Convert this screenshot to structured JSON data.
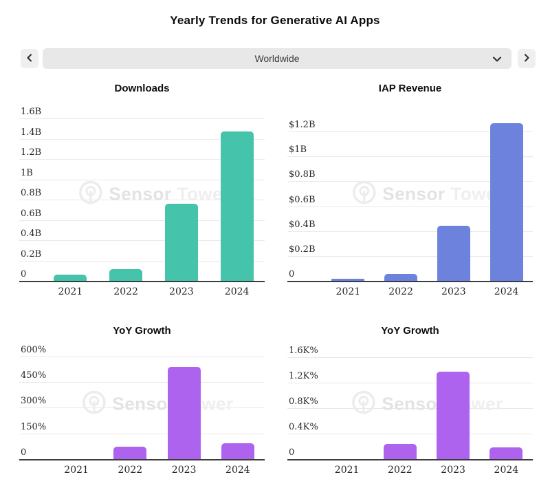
{
  "page": {
    "title": "Yearly Trends for Generative AI Apps"
  },
  "controls": {
    "selected_region": "Worldwide",
    "prev_icon": "chevron-left",
    "next_icon": "chevron-right",
    "dropdown_icon": "chevron-down"
  },
  "watermark": {
    "brand_primary": "Sensor",
    "brand_secondary": "Tower"
  },
  "colors": {
    "downloads_bar": "#45c4ab",
    "revenue_bar": "#6c82dd",
    "growth_bar": "#ae63ee",
    "gridline": "#e9e9e9",
    "axis": "#3c3c3c",
    "control_bg": "#e8e8e8",
    "button_bg": "#efefef"
  },
  "chart_data": [
    {
      "id": "downloads",
      "type": "bar",
      "title": "Downloads",
      "unit": "billions of downloads",
      "categories": [
        "2021",
        "2022",
        "2023",
        "2024"
      ],
      "values": [
        0.07,
        0.12,
        0.77,
        1.48
      ],
      "color": "#45c4ab",
      "ticks": [
        {
          "v": 0,
          "label": "0"
        },
        {
          "v": 0.2,
          "label": "0.2B"
        },
        {
          "v": 0.4,
          "label": "0.4B"
        },
        {
          "v": 0.6,
          "label": "0.6B"
        },
        {
          "v": 0.8,
          "label": "0.8B"
        },
        {
          "v": 1,
          "label": "1B"
        },
        {
          "v": 1.2,
          "label": "1.2B"
        },
        {
          "v": 1.4,
          "label": "1.4B"
        },
        {
          "v": 1.6,
          "label": "1.6B"
        }
      ],
      "ylim": [
        0,
        1.73
      ],
      "grid": true,
      "legend": false
    },
    {
      "id": "iap-revenue",
      "type": "bar",
      "title": "IAP Revenue",
      "unit": "USD billions",
      "categories": [
        "2021",
        "2022",
        "2023",
        "2024"
      ],
      "values": [
        0.02,
        0.06,
        0.45,
        1.27
      ],
      "color": "#6c82dd",
      "ticks": [
        {
          "v": 0,
          "label": "0"
        },
        {
          "v": 0.2,
          "label": "$0.2B"
        },
        {
          "v": 0.4,
          "label": "$0.4B"
        },
        {
          "v": 0.6,
          "label": "$0.6B"
        },
        {
          "v": 0.8,
          "label": "$0.8B"
        },
        {
          "v": 1,
          "label": "$1B"
        },
        {
          "v": 1.2,
          "label": "$1.2B"
        }
      ],
      "ylim": [
        0,
        1.41
      ],
      "grid": true,
      "legend": false
    },
    {
      "id": "yoy-growth-downloads",
      "type": "bar",
      "title": "YoY Growth",
      "unit": "percent",
      "categories": [
        "2021",
        "2022",
        "2023",
        "2024"
      ],
      "values": [
        2,
        78,
        545,
        95
      ],
      "color": "#ae63ee",
      "ticks": [
        {
          "v": 0,
          "label": "0"
        },
        {
          "v": 150,
          "label": "150%"
        },
        {
          "v": 300,
          "label": "300%"
        },
        {
          "v": 450,
          "label": "450%"
        },
        {
          "v": 600,
          "label": "600%"
        }
      ],
      "ylim": [
        0,
        652
      ],
      "grid": true,
      "legend": false
    },
    {
      "id": "yoy-growth-revenue",
      "type": "bar",
      "title": "YoY Growth",
      "unit": "percent",
      "categories": [
        "2021",
        "2022",
        "2023",
        "2024"
      ],
      "values": [
        2,
        250,
        1380,
        190
      ],
      "color": "#ae63ee",
      "ticks": [
        {
          "v": 0,
          "label": "0"
        },
        {
          "v": 400,
          "label": "0.4K%"
        },
        {
          "v": 800,
          "label": "0.8K%"
        },
        {
          "v": 1200,
          "label": "1.2K%"
        },
        {
          "v": 1600,
          "label": "1.6K%"
        }
      ],
      "ylim": [
        0,
        1750
      ],
      "grid": true,
      "legend": false
    }
  ]
}
